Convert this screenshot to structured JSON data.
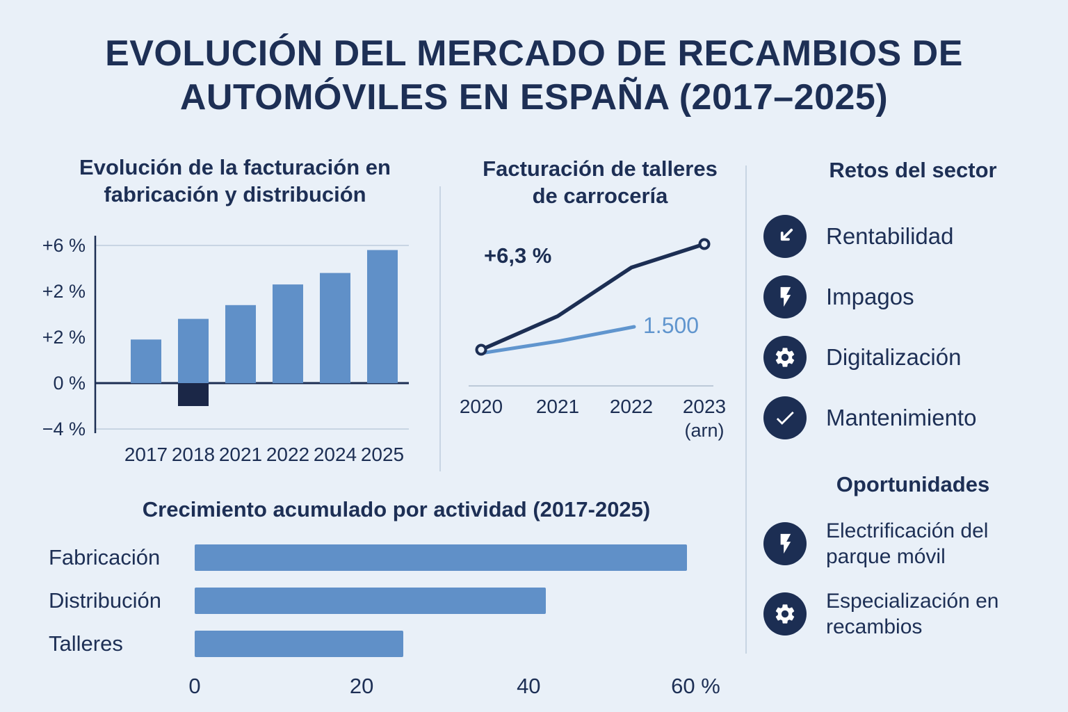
{
  "page": {
    "title": "EVOLUCIÓN DEL MERCADO DE RECAMBIOS DE AUTOMÓVILES EN ESPAÑA (2017–2025)"
  },
  "colors": {
    "background": "#e9f0f8",
    "navy": "#1c2e53",
    "bar_blue": "#6090c8",
    "negative_navy": "#1b2747",
    "light_line_blue": "#6095ce",
    "grid": "#c8d5e3"
  },
  "chart_data": [
    {
      "id": "billing_evolution",
      "type": "bar",
      "title": "Evolución de la facturación en fabricación y distribución",
      "categories": [
        "2017",
        "2018",
        "2021",
        "2022",
        "2024",
        "2025"
      ],
      "values": [
        1.9,
        2.8,
        3.4,
        4.3,
        4.8,
        5.8
      ],
      "negative_values": [
        0,
        -1.0,
        0,
        0,
        0,
        0
      ],
      "y_tick_labels": [
        "+6 %",
        "+2 %",
        "+2 %",
        "0 %",
        "−4 %"
      ],
      "zero_tick_index": 3,
      "ymax": 6,
      "bar_color": "#6090c8",
      "negative_color": "#1b2747",
      "grid": "top and bottom gridlines, dark zero baseline, left axis line"
    },
    {
      "id": "body_shop_billing",
      "type": "line",
      "title": "Facturación de talleres de carrocería",
      "x_tick_labels": [
        "2020",
        "2021",
        "2022",
        "2023"
      ],
      "x_tick_sub": "(arn)",
      "series": [
        {
          "name": "talleres-dark",
          "color": "#1c2e53",
          "values": [
            0,
            2.0,
            4.9,
            6.3
          ],
          "range": [
            0,
            6.3
          ],
          "annotation": "+6,3 %",
          "markers": "open circles at first and last point"
        },
        {
          "name": "talleres-light",
          "color": "#6095ce",
          "values": [
            1.35,
            1.42,
            1.5
          ],
          "range": [
            1.35,
            1.5
          ],
          "annotation": "1.500"
        }
      ],
      "legend": "none"
    },
    {
      "id": "accumulated_growth",
      "type": "bar-horizontal",
      "title": "Crecimiento acumulado por actividad (2017-2025)",
      "categories": [
        "Fabricación",
        "Distribución",
        "Talleres"
      ],
      "values": [
        59,
        42,
        25
      ],
      "xmax": 63.3,
      "x_tick_labels": [
        "0",
        "20",
        "40",
        "60 %"
      ],
      "x_tick_values": [
        0,
        20,
        40,
        60
      ],
      "bar_color": "#6090c8"
    }
  ],
  "sidebar": {
    "challenges": {
      "title": "Retos del sector",
      "items": [
        {
          "icon": "arrow-down-icon",
          "label": "Rentabilidad"
        },
        {
          "icon": "bolt-icon",
          "label": "Impagos"
        },
        {
          "icon": "gear-icon",
          "label": "Digitalización"
        },
        {
          "icon": "check-icon",
          "label": "Mantenimiento"
        }
      ]
    },
    "opportunities": {
      "title": "Oportunidades",
      "items": [
        {
          "icon": "bolt-icon",
          "label": "Electrificación del parque móvil"
        },
        {
          "icon": "gear-icon",
          "label": "Especialización en recambios"
        }
      ]
    }
  }
}
